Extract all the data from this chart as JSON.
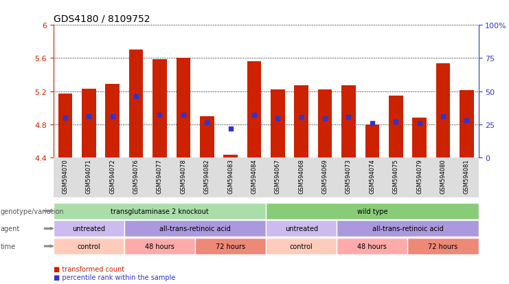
{
  "title": "GDS4180 / 8109752",
  "samples": [
    "GSM594070",
    "GSM594071",
    "GSM594072",
    "GSM594076",
    "GSM594077",
    "GSM594078",
    "GSM594082",
    "GSM594083",
    "GSM594084",
    "GSM594067",
    "GSM594068",
    "GSM594069",
    "GSM594073",
    "GSM594074",
    "GSM594075",
    "GSM594079",
    "GSM594080",
    "GSM594081"
  ],
  "bar_values": [
    5.17,
    5.23,
    5.29,
    5.7,
    5.59,
    5.6,
    4.9,
    4.43,
    5.56,
    5.22,
    5.27,
    5.22,
    5.27,
    4.8,
    5.15,
    4.88,
    5.54,
    5.21
  ],
  "percentile_values": [
    4.88,
    4.9,
    4.9,
    5.14,
    4.91,
    4.91,
    4.82,
    4.75,
    4.91,
    4.87,
    4.89,
    4.87,
    4.89,
    4.81,
    4.83,
    4.81,
    4.9,
    4.85
  ],
  "ymin": 4.4,
  "ymax": 6.0,
  "yticks": [
    4.4,
    4.8,
    5.2,
    5.6,
    6.0
  ],
  "ytick_labels": [
    "4.4",
    "4.8",
    "5.2",
    "5.6",
    "6"
  ],
  "right_yticks": [
    0,
    25,
    50,
    75,
    100
  ],
  "bar_color": "#cc2200",
  "dot_color": "#3333cc",
  "bar_width": 0.6,
  "genotype_groups": [
    {
      "label": "transglutaminase 2 knockout",
      "start": 0,
      "end": 8,
      "color": "#aaddaa"
    },
    {
      "label": "wild type",
      "start": 9,
      "end": 17,
      "color": "#88cc77"
    }
  ],
  "agent_groups": [
    {
      "label": "untreated",
      "start": 0,
      "end": 2,
      "color": "#ccbbee"
    },
    {
      "label": "all-trans-retinoic acid",
      "start": 3,
      "end": 8,
      "color": "#aa99dd"
    },
    {
      "label": "untreated",
      "start": 9,
      "end": 11,
      "color": "#ccbbee"
    },
    {
      "label": "all-trans-retinoic acid",
      "start": 12,
      "end": 17,
      "color": "#aa99dd"
    }
  ],
  "time_groups": [
    {
      "label": "control",
      "start": 0,
      "end": 2,
      "color": "#ffccbb"
    },
    {
      "label": "48 hours",
      "start": 3,
      "end": 5,
      "color": "#ffaaaa"
    },
    {
      "label": "72 hours",
      "start": 6,
      "end": 8,
      "color": "#ee8877"
    },
    {
      "label": "control",
      "start": 9,
      "end": 11,
      "color": "#ffccbb"
    },
    {
      "label": "48 hours",
      "start": 12,
      "end": 14,
      "color": "#ffaaaa"
    },
    {
      "label": "72 hours",
      "start": 15,
      "end": 17,
      "color": "#ee8877"
    }
  ],
  "row_labels": [
    "genotype/variation",
    "agent",
    "time"
  ],
  "legend_items": [
    {
      "label": "transformed count",
      "color": "#cc2200"
    },
    {
      "label": "percentile rank within the sample",
      "color": "#3333cc"
    }
  ],
  "axis_color_left": "#cc2200",
  "axis_color_right": "#3333cc",
  "title_fontsize": 10,
  "tick_fontsize": 8,
  "label_fontsize": 7
}
